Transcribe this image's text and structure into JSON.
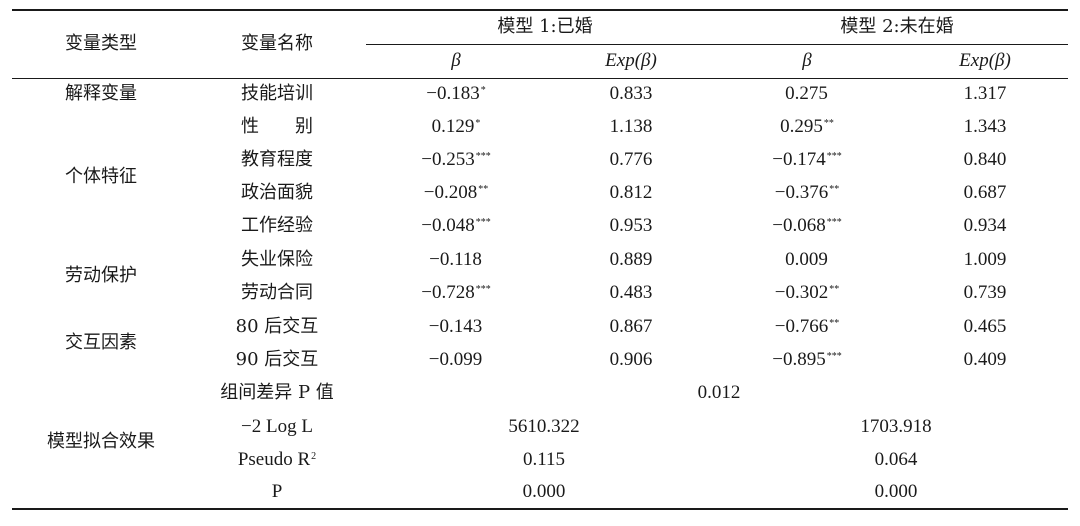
{
  "header": {
    "var_type": "变量类型",
    "var_name": "变量名称",
    "model1": "模型 1:已婚",
    "model2": "模型 2:未在婚",
    "beta": "β",
    "exp_beta": "Exp(β)"
  },
  "groups": {
    "explanatory": "解释变量",
    "individual": "个体特征",
    "labor": "劳动保护",
    "interaction": "交互因素",
    "fit": "模型拟合效果"
  },
  "rows": [
    {
      "name": "技能培训",
      "m1_beta": "−0.183",
      "m1_sig": "*",
      "m1_exp": "0.833",
      "m2_beta": "0.275",
      "m2_sig": "",
      "m2_exp": "1.317"
    },
    {
      "name": "性　　别",
      "m1_beta": "0.129",
      "m1_sig": "*",
      "m1_exp": "1.138",
      "m2_beta": "0.295",
      "m2_sig": "**",
      "m2_exp": "1.343"
    },
    {
      "name": "教育程度",
      "m1_beta": "−0.253",
      "m1_sig": "***",
      "m1_exp": "0.776",
      "m2_beta": "−0.174",
      "m2_sig": "***",
      "m2_exp": "0.840"
    },
    {
      "name": "政治面貌",
      "m1_beta": "−0.208",
      "m1_sig": "**",
      "m1_exp": "0.812",
      "m2_beta": "−0.376",
      "m2_sig": "**",
      "m2_exp": "0.687"
    },
    {
      "name": "工作经验",
      "m1_beta": "−0.048",
      "m1_sig": "***",
      "m1_exp": "0.953",
      "m2_beta": "−0.068",
      "m2_sig": "***",
      "m2_exp": "0.934"
    },
    {
      "name": "失业保险",
      "m1_beta": "−0.118",
      "m1_sig": "",
      "m1_exp": "0.889",
      "m2_beta": "0.009",
      "m2_sig": "",
      "m2_exp": "1.009"
    },
    {
      "name": "劳动合同",
      "m1_beta": "−0.728",
      "m1_sig": "***",
      "m1_exp": "0.483",
      "m2_beta": "−0.302",
      "m2_sig": "**",
      "m2_exp": "0.739"
    },
    {
      "name": "80 后交互",
      "m1_beta": "−0.143",
      "m1_sig": "",
      "m1_exp": "0.867",
      "m2_beta": "−0.766",
      "m2_sig": "**",
      "m2_exp": "0.465"
    },
    {
      "name": "90 后交互",
      "m1_beta": "−0.099",
      "m1_sig": "",
      "m1_exp": "0.906",
      "m2_beta": "−0.895",
      "m2_sig": "***",
      "m2_exp": "0.409"
    }
  ],
  "fit": {
    "group_diff_label": "组间差异 P 值",
    "group_diff_value": "0.012",
    "loglik_label": "−2 Log L",
    "loglik_m1": "5610.322",
    "loglik_m2": "1703.918",
    "pseudo_label": "Pseudo R",
    "pseudo_sup": "2",
    "pseudo_m1": "0.115",
    "pseudo_m2": "0.064",
    "p_label": "P",
    "p_m1": "0.000",
    "p_m2": "0.000"
  }
}
